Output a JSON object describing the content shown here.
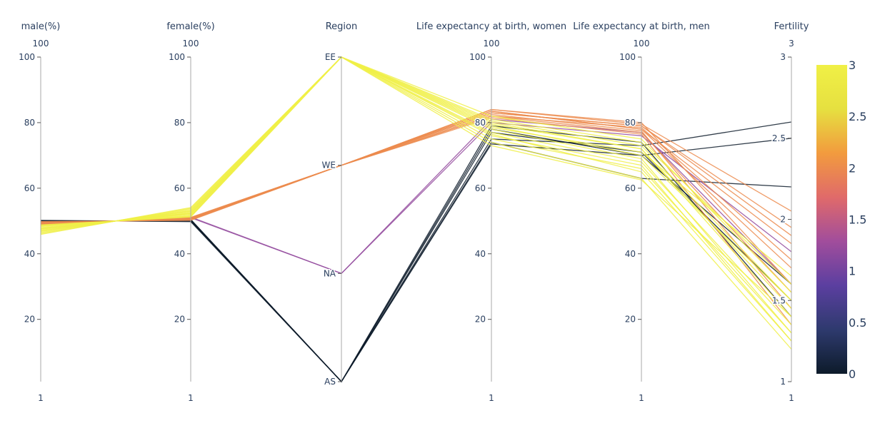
{
  "chart_data": {
    "type": "parallel-coordinates",
    "dimensions": [
      {
        "label": "male(%)",
        "range": [
          1,
          100
        ],
        "range_labels": [
          "100",
          "1"
        ],
        "ticks": [
          {
            "v": 20,
            "t": "20"
          },
          {
            "v": 40,
            "t": "40"
          },
          {
            "v": 60,
            "t": "60"
          },
          {
            "v": 80,
            "t": "80"
          },
          {
            "v": 100,
            "t": "100"
          }
        ]
      },
      {
        "label": "female(%)",
        "range": [
          1,
          100
        ],
        "range_labels": [
          "100",
          "1"
        ],
        "ticks": [
          {
            "v": 20,
            "t": "20"
          },
          {
            "v": 40,
            "t": "40"
          },
          {
            "v": 60,
            "t": "60"
          },
          {
            "v": 80,
            "t": "80"
          },
          {
            "v": 100,
            "t": "100"
          }
        ]
      },
      {
        "label": "Region",
        "range": [
          0,
          3
        ],
        "range_labels": [
          "",
          ""
        ],
        "ticks": [
          {
            "v": 0,
            "t": "AS"
          },
          {
            "v": 1,
            "t": "NA"
          },
          {
            "v": 2,
            "t": "WE"
          },
          {
            "v": 3,
            "t": "EE"
          }
        ]
      },
      {
        "label": "Life expectancy at birth, women",
        "range": [
          1,
          100
        ],
        "range_labels": [
          "100",
          "1"
        ],
        "ticks": [
          {
            "v": 20,
            "t": "20"
          },
          {
            "v": 40,
            "t": "40"
          },
          {
            "v": 60,
            "t": "60"
          },
          {
            "v": 80,
            "t": "80"
          },
          {
            "v": 100,
            "t": "100"
          }
        ]
      },
      {
        "label": "Life expectancy at birth, men",
        "range": [
          1,
          100
        ],
        "range_labels": [
          "100",
          "1"
        ],
        "ticks": [
          {
            "v": 20,
            "t": "20"
          },
          {
            "v": 40,
            "t": "40"
          },
          {
            "v": 60,
            "t": "60"
          },
          {
            "v": 80,
            "t": "80"
          },
          {
            "v": 100,
            "t": "100"
          }
        ]
      },
      {
        "label": "Fertility",
        "range": [
          1,
          3
        ],
        "range_labels": [
          "3",
          "1"
        ],
        "ticks": [
          {
            "v": 1,
            "t": "1"
          },
          {
            "v": 1.5,
            "t": "1.5"
          },
          {
            "v": 2,
            "t": "2"
          },
          {
            "v": 2.5,
            "t": "2.5"
          },
          {
            "v": 3,
            "t": "3"
          }
        ]
      }
    ],
    "records": [
      [
        50.2,
        49.8,
        0,
        74,
        63,
        2.2,
        0
      ],
      [
        49.7,
        50.3,
        0,
        73.5,
        70,
        2.5,
        0
      ],
      [
        49.5,
        50.5,
        0,
        75,
        73,
        2.6,
        0
      ],
      [
        50,
        50,
        0,
        77,
        71,
        1.5,
        0
      ],
      [
        49.6,
        50.4,
        0,
        78,
        70,
        1.6,
        0
      ],
      [
        49.8,
        50.2,
        0,
        79,
        74,
        1.4,
        0
      ],
      [
        49,
        51,
        1,
        80,
        76,
        1.8,
        1.2
      ],
      [
        48.8,
        51.2,
        1,
        81,
        77,
        1.6,
        1.2
      ],
      [
        49.8,
        50.2,
        2,
        84,
        79.5,
        2.05,
        2
      ],
      [
        49.4,
        50.6,
        2,
        83,
        79,
        1.9,
        2
      ],
      [
        49.2,
        50.8,
        2,
        83.5,
        78,
        1.85,
        2
      ],
      [
        49.6,
        50.4,
        2,
        82,
        78.5,
        1.75,
        2
      ],
      [
        49,
        51,
        2,
        84,
        80,
        1.6,
        2
      ],
      [
        48.9,
        51.1,
        2,
        82.5,
        77.5,
        1.45,
        2
      ],
      [
        49.3,
        50.7,
        2,
        81.5,
        76.5,
        1.35,
        2
      ],
      [
        49.5,
        50.5,
        2,
        83,
        79,
        1.95,
        2
      ],
      [
        49.1,
        50.9,
        2,
        82,
        77,
        1.55,
        2
      ],
      [
        49.7,
        50.3,
        2,
        83.5,
        78,
        1.7,
        2
      ],
      [
        48.6,
        51.4,
        3,
        76,
        67,
        1.25,
        3
      ],
      [
        47.5,
        52.5,
        3,
        78,
        69,
        1.3,
        3
      ],
      [
        46.5,
        53.5,
        3,
        74,
        63,
        1.2,
        3
      ],
      [
        47,
        53,
        3,
        79,
        70,
        1.5,
        3
      ],
      [
        48,
        52,
        3,
        80,
        72,
        1.4,
        3
      ],
      [
        48.3,
        51.7,
        3,
        77,
        68,
        1.35,
        3
      ],
      [
        45.9,
        54.1,
        3,
        73,
        62.5,
        1.4,
        3
      ],
      [
        46.8,
        53.2,
        3,
        81,
        74,
        1.6,
        3
      ],
      [
        47.8,
        52.2,
        3,
        79.5,
        72,
        1.45,
        3
      ],
      [
        48.8,
        51.2,
        3,
        82,
        75,
        1.55,
        3
      ],
      [
        47.2,
        52.8,
        3,
        75,
        66,
        1.3,
        3
      ],
      [
        48.5,
        51.5,
        3,
        78.5,
        71,
        1.65,
        3
      ],
      [
        46.2,
        53.8,
        3,
        76.5,
        65,
        1.25,
        3
      ],
      [
        47.6,
        52.4,
        3,
        80.5,
        73,
        1.5,
        3
      ]
    ],
    "colorbar": {
      "range": [
        0,
        3
      ],
      "ticks": [
        {
          "v": 0,
          "t": "0"
        },
        {
          "v": 0.5,
          "t": "0.5"
        },
        {
          "v": 1,
          "t": "1"
        },
        {
          "v": 1.5,
          "t": "1.5"
        },
        {
          "v": 2,
          "t": "2"
        },
        {
          "v": 2.5,
          "t": "2.5"
        },
        {
          "v": 3,
          "t": "3"
        }
      ],
      "colorscale": [
        "#0d1b2a",
        "#2e3a6e",
        "#5b3fa0",
        "#a14d9c",
        "#e06a6a",
        "#f29b3e",
        "#e6e040",
        "#f0f046"
      ]
    },
    "colors": {
      "text": "#2a3f5f",
      "axis": "#aaaaaa"
    }
  }
}
